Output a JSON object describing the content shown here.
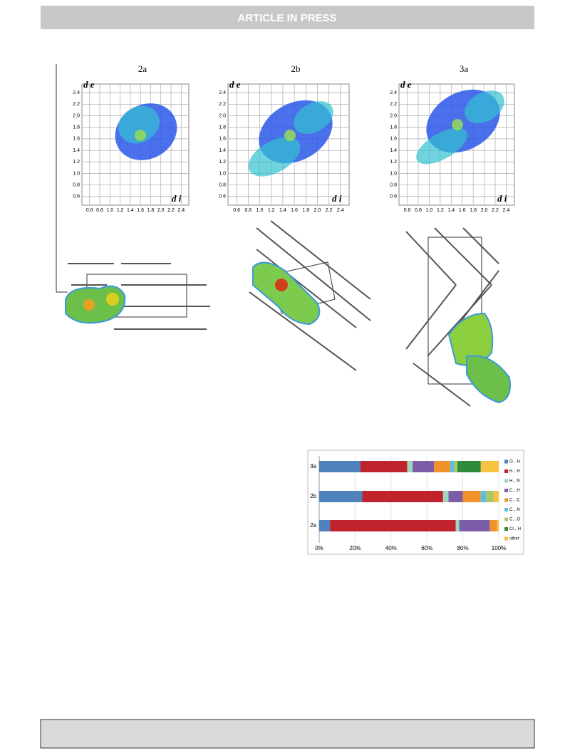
{
  "header": {
    "title": "ARTICLE IN PRESS"
  },
  "fingerprints": [
    {
      "label": "2a",
      "y_label": "d e",
      "x_label": "d i"
    },
    {
      "label": "2b",
      "y_label": "d e",
      "x_label": "d i"
    },
    {
      "label": "3a",
      "y_label": "d e",
      "x_label": "d i"
    }
  ],
  "fingerprint_axes": {
    "xlim": [
      0.45,
      2.55
    ],
    "ylim": [
      0.45,
      2.55
    ],
    "xticks": [
      0.6,
      0.8,
      {
        "value": 1,
        "label": "1.0"
      },
      1.2,
      1.4,
      1.6,
      1.8,
      {
        "value": 2,
        "label": "2.0"
      },
      2.2,
      2.4
    ],
    "yticks": [
      0.6,
      0.8,
      {
        "value": 1,
        "label": "1.0"
      },
      1.2,
      1.4,
      1.6,
      1.8,
      {
        "value": 2,
        "label": "2.0"
      },
      2.2,
      2.4
    ]
  },
  "chart_data": {
    "type": "stacked-bar-horizontal",
    "categories": [
      "3a",
      "2b",
      "2a"
    ],
    "series": [
      {
        "name": "O…H",
        "color": "#4f81bd",
        "values": [
          23,
          24,
          6
        ]
      },
      {
        "name": "H…H",
        "color": "#c0232c",
        "values": [
          26,
          45,
          70
        ]
      },
      {
        "name": "H…N",
        "color": "#9fd6bf",
        "values": [
          3,
          3,
          2
        ]
      },
      {
        "name": "C…H",
        "color": "#7b5ea7",
        "values": [
          12,
          8,
          17
        ]
      },
      {
        "name": "C…C",
        "color": "#f0922b",
        "values": [
          9,
          10,
          4
        ]
      },
      {
        "name": "C…N",
        "color": "#5bc0de",
        "values": [
          2,
          3,
          0
        ]
      },
      {
        "name": "C…O",
        "color": "#a9c66a",
        "values": [
          2,
          4,
          0
        ]
      },
      {
        "name": "Cl…H",
        "color": "#2e8b3e",
        "values": [
          13,
          0,
          0
        ]
      },
      {
        "name": "other",
        "color": "#f5c242",
        "values": [
          10,
          3,
          1
        ]
      }
    ],
    "xlim": [
      0,
      100
    ],
    "xticks": [
      {
        "value": 0,
        "label": "0%"
      },
      {
        "value": 20,
        "label": "20%"
      },
      {
        "value": 40,
        "label": "40%"
      },
      {
        "value": 60,
        "label": "60%"
      },
      {
        "value": 80,
        "label": "80%"
      },
      {
        "value": 100,
        "label": "100%"
      }
    ]
  }
}
